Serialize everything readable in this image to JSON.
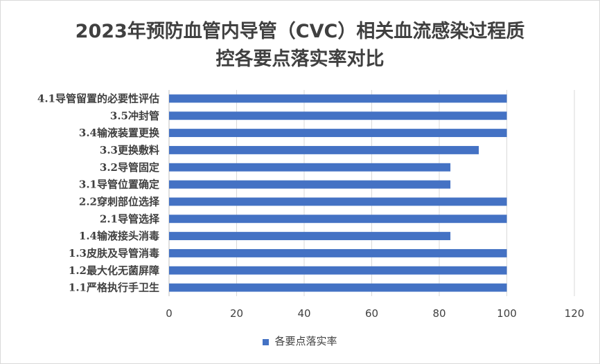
{
  "chart_data": {
    "type": "bar",
    "orientation": "horizontal",
    "title_lines": [
      "2023年预防血管内导管（CVC）相关血流感染过程质",
      "控各要点落实率对比"
    ],
    "categories": [
      "1.1严格执行手卫生",
      "1.2最大化无菌屏障",
      "1.3皮肤及导管消毒",
      "1.4输液接头消毒",
      "2.1导管选择",
      "2.2穿刺部位选择",
      "3.1导管位置确定",
      "3.2导管固定",
      "3.3更换敷料",
      "3.4输液装置更换",
      "3.5冲封管",
      "4.1导管留置的必要性评估"
    ],
    "series": [
      {
        "name": "各要点落实率",
        "values": [
          100,
          100,
          100,
          83.3,
          100,
          100,
          83.3,
          83.3,
          91.7,
          100,
          100,
          100
        ],
        "color": "#4472c4"
      }
    ],
    "xlim": [
      0,
      120
    ],
    "xticks": [
      "0",
      "20",
      "40",
      "60",
      "80",
      "100",
      "120"
    ],
    "grid": true,
    "legend_position": "bottom"
  }
}
